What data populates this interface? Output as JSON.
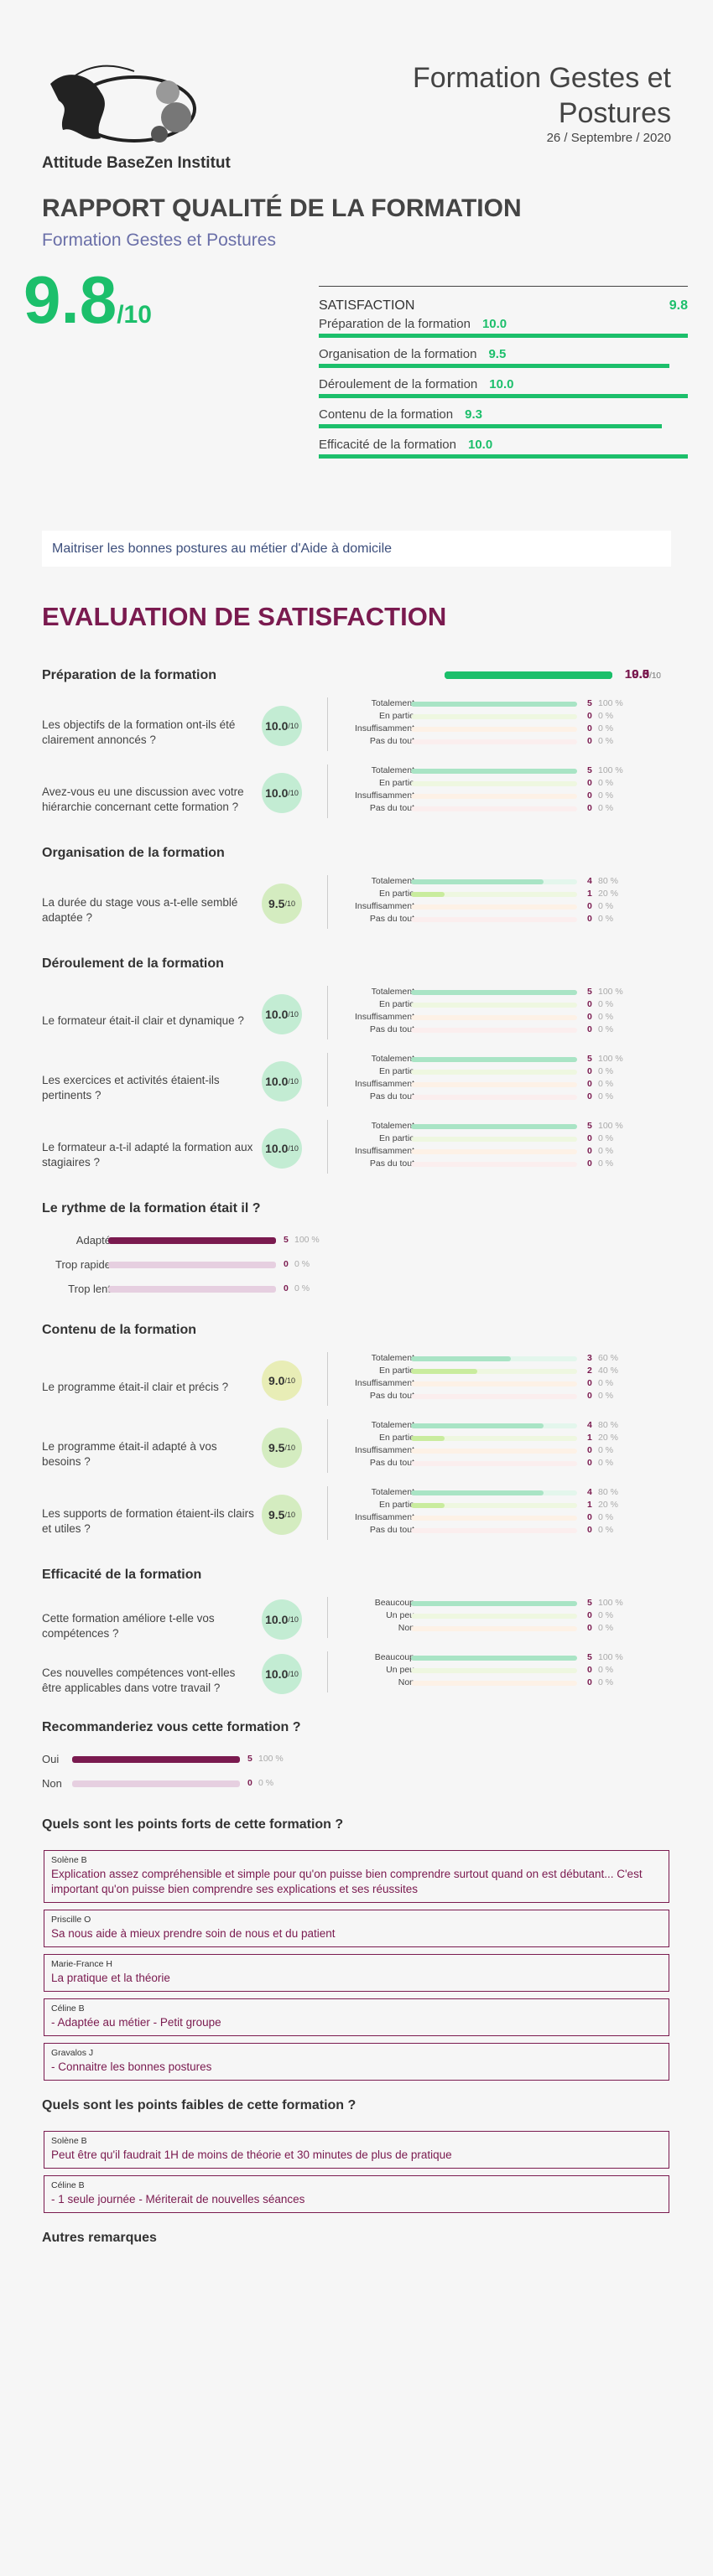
{
  "header": {
    "org": "Attitude BaseZen Institut",
    "training": "Formation Gestes et Postures",
    "date": "26 / Septembre / 2020"
  },
  "report": {
    "title": "RAPPORT QUALITÉ DE LA FORMATION",
    "subtitle": "Formation Gestes et Postures",
    "score": {
      "value": 9.8,
      "label": "9.8"
    },
    "out_of": "/10"
  },
  "satisfaction": {
    "title": "SATISFACTION",
    "score": {
      "value": 9.8,
      "label": "9.8"
    },
    "items": [
      {
        "name": "Préparation de la formation",
        "score": {
          "value": 10,
          "label": "10.0"
        }
      },
      {
        "name": "Organisation de la formation",
        "score": {
          "value": 9.5,
          "label": "9.5"
        }
      },
      {
        "name": "Déroulement de la formation",
        "score": {
          "value": 10,
          "label": "10.0"
        }
      },
      {
        "name": "Contenu de la formation",
        "score": {
          "value": 9.3,
          "label": "9.3"
        }
      },
      {
        "name": "Efficacité de la formation",
        "score": {
          "value": 10,
          "label": "10.0"
        }
      }
    ]
  },
  "objective": "Maitriser les bonnes postures au métier d'Aide à domicile",
  "evaluation": {
    "title": "EVALUATION DE SATISFACTION",
    "sections": [
      {
        "kind": "likert",
        "title": "Préparation de la formation",
        "score": {
          "value": 10,
          "label": "10.0"
        },
        "questions": [
          {
            "text": "Les objectifs de la formation ont-ils été clairement annoncés ?",
            "score": {
              "value": 10,
              "label": "10.0"
            },
            "answers": [
              {
                "label": "Totalement",
                "count": 5,
                "percent": {
                  "value": 100,
                  "label": "100 %"
                }
              },
              {
                "label": "En partie",
                "count": 0,
                "percent": {
                  "value": 0,
                  "label": "0 %"
                }
              },
              {
                "label": "Insuffisamment",
                "count": 0,
                "percent": {
                  "value": 0,
                  "label": "0 %"
                }
              },
              {
                "label": "Pas du tout",
                "count": 0,
                "percent": {
                  "value": 0,
                  "label": "0 %"
                }
              }
            ]
          },
          {
            "text": "Avez-vous eu une discussion avec votre hiérarchie concernant cette formation ?",
            "score": {
              "value": 10,
              "label": "10.0"
            },
            "answers": [
              {
                "label": "Totalement",
                "count": 5,
                "percent": {
                  "value": 100,
                  "label": "100 %"
                }
              },
              {
                "label": "En partie",
                "count": 0,
                "percent": {
                  "value": 0,
                  "label": "0 %"
                }
              },
              {
                "label": "Insuffisamment",
                "count": 0,
                "percent": {
                  "value": 0,
                  "label": "0 %"
                }
              },
              {
                "label": "Pas du tout",
                "count": 0,
                "percent": {
                  "value": 0,
                  "label": "0 %"
                }
              }
            ]
          }
        ]
      },
      {
        "kind": "likert",
        "title": "Organisation de la formation",
        "score": {
          "value": 9.5,
          "label": "9.5"
        },
        "questions": [
          {
            "text": "La durée du stage vous a-t-elle semblé adaptée ?",
            "score": {
              "value": 9.5,
              "label": "9.5"
            },
            "answers": [
              {
                "label": "Totalement",
                "count": 4,
                "percent": {
                  "value": 80,
                  "label": "80 %"
                }
              },
              {
                "label": "En partie",
                "count": 1,
                "percent": {
                  "value": 20,
                  "label": "20 %"
                }
              },
              {
                "label": "Insuffisamment",
                "count": 0,
                "percent": {
                  "value": 0,
                  "label": "0 %"
                }
              },
              {
                "label": "Pas du tout",
                "count": 0,
                "percent": {
                  "value": 0,
                  "label": "0 %"
                }
              }
            ]
          }
        ]
      },
      {
        "kind": "likert",
        "title": "Déroulement de la formation",
        "score": {
          "value": 10,
          "label": "10.0"
        },
        "questions": [
          {
            "text": "Le formateur était-il clair et dynamique ?",
            "score": {
              "value": 10,
              "label": "10.0"
            },
            "answers": [
              {
                "label": "Totalement",
                "count": 5,
                "percent": {
                  "value": 100,
                  "label": "100 %"
                }
              },
              {
                "label": "En partie",
                "count": 0,
                "percent": {
                  "value": 0,
                  "label": "0 %"
                }
              },
              {
                "label": "Insuffisamment",
                "count": 0,
                "percent": {
                  "value": 0,
                  "label": "0 %"
                }
              },
              {
                "label": "Pas du tout",
                "count": 0,
                "percent": {
                  "value": 0,
                  "label": "0 %"
                }
              }
            ]
          },
          {
            "text": "Les exercices et activités étaient-ils pertinents ?",
            "score": {
              "value": 10,
              "label": "10.0"
            },
            "answers": [
              {
                "label": "Totalement",
                "count": 5,
                "percent": {
                  "value": 100,
                  "label": "100 %"
                }
              },
              {
                "label": "En partie",
                "count": 0,
                "percent": {
                  "value": 0,
                  "label": "0 %"
                }
              },
              {
                "label": "Insuffisamment",
                "count": 0,
                "percent": {
                  "value": 0,
                  "label": "0 %"
                }
              },
              {
                "label": "Pas du tout",
                "count": 0,
                "percent": {
                  "value": 0,
                  "label": "0 %"
                }
              }
            ]
          },
          {
            "text": "Le formateur a-t-il adapté la formation aux stagiaires ?",
            "score": {
              "value": 10,
              "label": "10.0"
            },
            "answers": [
              {
                "label": "Totalement",
                "count": 5,
                "percent": {
                  "value": 100,
                  "label": "100 %"
                }
              },
              {
                "label": "En partie",
                "count": 0,
                "percent": {
                  "value": 0,
                  "label": "0 %"
                }
              },
              {
                "label": "Insuffisamment",
                "count": 0,
                "percent": {
                  "value": 0,
                  "label": "0 %"
                }
              },
              {
                "label": "Pas du tout",
                "count": 0,
                "percent": {
                  "value": 0,
                  "label": "0 %"
                }
              }
            ]
          }
        ]
      },
      {
        "kind": "choice",
        "title": "Le rythme de la formation était il ?",
        "options": [
          {
            "label": "Adapté",
            "count": 5,
            "percent": {
              "value": 100,
              "label": "100 %"
            }
          },
          {
            "label": "Trop rapide",
            "count": 0,
            "percent": {
              "value": 0,
              "label": "0 %"
            }
          },
          {
            "label": "Trop lent",
            "count": 0,
            "percent": {
              "value": 0,
              "label": "0 %"
            }
          }
        ]
      },
      {
        "kind": "likert",
        "title": "Contenu de la formation",
        "score": {
          "value": 9.3,
          "label": "9.3"
        },
        "questions": [
          {
            "text": "Le programme était-il clair et précis ?",
            "score": {
              "value": 9,
              "label": "9.0"
            },
            "answers": [
              {
                "label": "Totalement",
                "count": 3,
                "percent": {
                  "value": 60,
                  "label": "60 %"
                }
              },
              {
                "label": "En partie",
                "count": 2,
                "percent": {
                  "value": 40,
                  "label": "40 %"
                }
              },
              {
                "label": "Insuffisamment",
                "count": 0,
                "percent": {
                  "value": 0,
                  "label": "0 %"
                }
              },
              {
                "label": "Pas du tout",
                "count": 0,
                "percent": {
                  "value": 0,
                  "label": "0 %"
                }
              }
            ]
          },
          {
            "text": "Le programme était-il adapté à vos besoins ?",
            "score": {
              "value": 9.5,
              "label": "9.5"
            },
            "answers": [
              {
                "label": "Totalement",
                "count": 4,
                "percent": {
                  "value": 80,
                  "label": "80 %"
                }
              },
              {
                "label": "En partie",
                "count": 1,
                "percent": {
                  "value": 20,
                  "label": "20 %"
                }
              },
              {
                "label": "Insuffisamment",
                "count": 0,
                "percent": {
                  "value": 0,
                  "label": "0 %"
                }
              },
              {
                "label": "Pas du tout",
                "count": 0,
                "percent": {
                  "value": 0,
                  "label": "0 %"
                }
              }
            ]
          },
          {
            "text": "Les supports de formation étaient-ils clairs et utiles ?",
            "score": {
              "value": 9.5,
              "label": "9.5"
            },
            "answers": [
              {
                "label": "Totalement",
                "count": 4,
                "percent": {
                  "value": 80,
                  "label": "80 %"
                }
              },
              {
                "label": "En partie",
                "count": 1,
                "percent": {
                  "value": 20,
                  "label": "20 %"
                }
              },
              {
                "label": "Insuffisamment",
                "count": 0,
                "percent": {
                  "value": 0,
                  "label": "0 %"
                }
              },
              {
                "label": "Pas du tout",
                "count": 0,
                "percent": {
                  "value": 0,
                  "label": "0 %"
                }
              }
            ]
          }
        ]
      },
      {
        "kind": "likert",
        "title": "Efficacité de la formation",
        "score": {
          "value": 10,
          "label": "10.0"
        },
        "questions": [
          {
            "text": "Cette formation améliore t-elle vos compétences ?",
            "score": {
              "value": 10,
              "label": "10.0"
            },
            "answers": [
              {
                "label": "Beaucoup",
                "count": 5,
                "percent": {
                  "value": 100,
                  "label": "100 %"
                }
              },
              {
                "label": "Un peu",
                "count": 0,
                "percent": {
                  "value": 0,
                  "label": "0 %"
                }
              },
              {
                "label": "Non",
                "count": 0,
                "percent": {
                  "value": 0,
                  "label": "0 %"
                }
              }
            ]
          },
          {
            "text": "Ces nouvelles compétences vont-elles être applicables dans votre travail ?",
            "score": {
              "value": 10,
              "label": "10.0"
            },
            "answers": [
              {
                "label": "Beaucoup",
                "count": 5,
                "percent": {
                  "value": 100,
                  "label": "100 %"
                }
              },
              {
                "label": "Un peu",
                "count": 0,
                "percent": {
                  "value": 0,
                  "label": "0 %"
                }
              },
              {
                "label": "Non",
                "count": 0,
                "percent": {
                  "value": 0,
                  "label": "0 %"
                }
              }
            ]
          }
        ]
      },
      {
        "kind": "choice-left",
        "title": "Recommanderiez vous cette formation ?",
        "options": [
          {
            "label": "Oui",
            "count": 5,
            "percent": {
              "value": 100,
              "label": "100 %"
            }
          },
          {
            "label": "Non",
            "count": 0,
            "percent": {
              "value": 0,
              "label": "0 %"
            }
          }
        ]
      },
      {
        "kind": "comments",
        "title": "Quels sont les points forts de cette formation ?",
        "comments": [
          {
            "author": "Solène B",
            "text": "Explication assez compréhensible et simple pour qu'on puisse bien comprendre surtout quand on est débutant... C'est important qu'on puisse bien comprendre ses explications et ses réussites"
          },
          {
            "author": "Priscille O",
            "text": "Sa nous aide à mieux prendre soin de nous et du patient"
          },
          {
            "author": "Marie-France H",
            "text": "La pratique et la théorie"
          },
          {
            "author": "Céline B",
            "text": "- Adaptée au métier - Petit groupe"
          },
          {
            "author": "Gravalos J",
            "text": "- Connaitre les bonnes postures"
          }
        ]
      },
      {
        "kind": "comments",
        "title": "Quels sont les points faibles de cette formation ?",
        "comments": [
          {
            "author": "Solène B",
            "text": "Peut être qu'il faudrait 1H de moins de théorie et 30 minutes de plus de pratique"
          },
          {
            "author": "Céline B",
            "text": "- 1 seule journée - Mériterait de nouvelles séances"
          }
        ]
      },
      {
        "kind": "comments",
        "title": "Autres remarques",
        "comments": []
      }
    ]
  }
}
